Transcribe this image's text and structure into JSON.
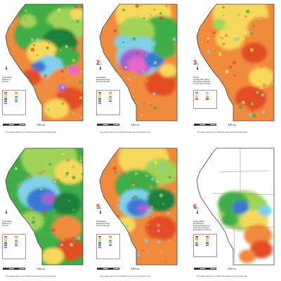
{
  "panels": [
    {
      "number": "",
      "title": [
        "Precipitation",
        "Relative to",
        "Normal"
      ],
      "palette": [
        "#e8542a",
        "#f28e3a",
        "#f7b851",
        "#f6e26b",
        "#b8dc58",
        "#52b948",
        "#1e8a3d",
        "#6cc5de",
        "#3c7fd0",
        "#b15fd3",
        "#e85fc2"
      ],
      "footer": "Visit weather.alberta.ca for additional maps and meteorological data",
      "logo": "Alberta"
    },
    {
      "number": "2.",
      "title": [
        "Precipitation",
        "Received During",
        "the Past 30 days"
      ],
      "palette": [
        "#e8542a",
        "#f28e3a",
        "#f7b851",
        "#f6e26b",
        "#b8dc58",
        "#52b948",
        "#1e8a3d",
        "#6cc5de",
        "#3c7fd0",
        "#b15fd3",
        "#e85fc2"
      ],
      "footer": "Visit weather.alberta.ca for additional maps and meteorological data",
      "logo": "Alberta"
    },
    {
      "number": "3.",
      "title": [
        "30-Day",
        "Average Daily Mean",
        "Temperature Relative",
        "to Long Term Normal"
      ],
      "palette": [
        "#5b8fd6",
        "#8fc5e0",
        "#c8e6b0",
        "#f6e26b",
        "#f7b851",
        "#f28e3a",
        "#e8542a",
        "#c33a22"
      ],
      "footer": "Visit weather.alberta.ca for additional maps and meteorological data",
      "logo": "Alberta"
    },
    {
      "number": "",
      "title": [
        "Precipitation",
        "Relative to",
        "Normal"
      ],
      "palette": [
        "#e8542a",
        "#f28e3a",
        "#f7b851",
        "#f6e26b",
        "#b8dc58",
        "#52b948",
        "#1e8a3d",
        "#6cc5de",
        "#3c7fd0",
        "#b15fd3",
        "#e85fc2"
      ],
      "footer": "Visit weather.alberta.ca for additional maps and meteorological data",
      "logo": "Alberta"
    },
    {
      "number": "5.",
      "title": [
        "Precipitation",
        "Received During",
        "the Past 90 days"
      ],
      "palette": [
        "#e8542a",
        "#f28e3a",
        "#f7b851",
        "#f6e26b",
        "#b8dc58",
        "#52b948",
        "#1e8a3d",
        "#6cc5de",
        "#3c7fd0",
        "#b15fd3",
        "#e85fc2"
      ],
      "footer": "Visit weather.alberta.ca for additional maps and meteorological data",
      "logo": "Alberta"
    },
    {
      "number": "6.",
      "title": [
        "Spring Wheat",
        "Soil Moisture",
        "Reserves Relative to",
        "Long Term Normals",
        "(to a Depth of 120 cm)"
      ],
      "palette": [
        "#c33a22",
        "#e8542a",
        "#f28e3a",
        "#f7b851",
        "#f6e26b",
        "#b8dc58",
        "#52b948",
        "#1e8a3d",
        "#3c7fd0",
        "#b15fd3"
      ],
      "footer": "Visit weather.alberta.ca for additional maps and meteorological data",
      "logo": "Alberta"
    }
  ],
  "colors": {
    "orange": "#f08a3c",
    "red": "#e34d26",
    "yellow": "#f6d95a",
    "lightgreen": "#9fd35a",
    "green": "#3fae46",
    "darkgreen": "#1d7f3a",
    "cyan": "#7fd0e8",
    "blue": "#3b78d4",
    "purple": "#a85fd0",
    "magenta": "#e865c9",
    "boundary": "#444444"
  }
}
